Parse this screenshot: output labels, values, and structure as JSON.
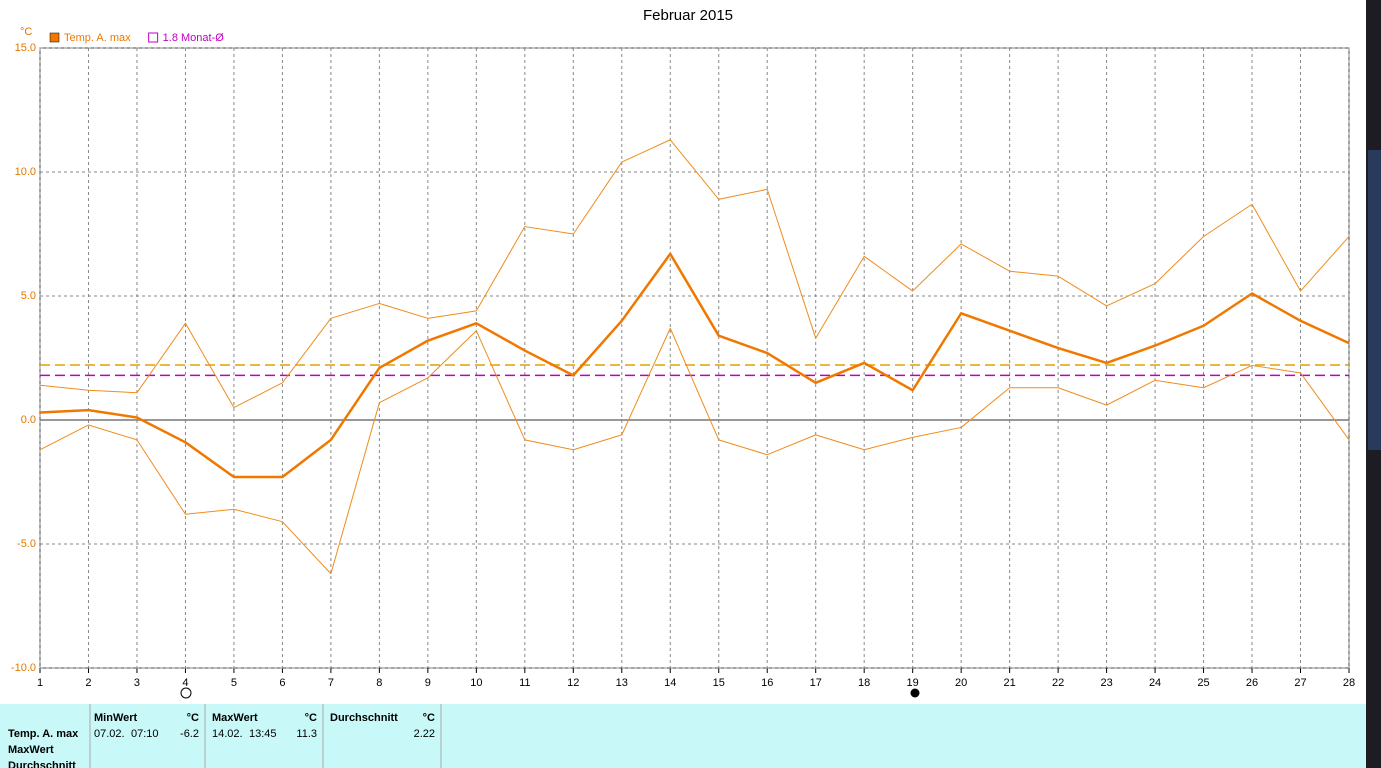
{
  "chart_data": {
    "type": "line",
    "title": "Februar 2015",
    "y_unit": "°C",
    "x": [
      1,
      2,
      3,
      4,
      5,
      6,
      7,
      8,
      9,
      10,
      11,
      12,
      13,
      14,
      15,
      16,
      17,
      18,
      19,
      20,
      21,
      22,
      23,
      24,
      25,
      26,
      27,
      28
    ],
    "xlim": [
      1,
      28
    ],
    "xticks": [
      1,
      2,
      3,
      4,
      5,
      6,
      7,
      8,
      9,
      10,
      11,
      12,
      13,
      14,
      15,
      16,
      17,
      18,
      19,
      20,
      21,
      22,
      23,
      24,
      25,
      26,
      27,
      28
    ],
    "ylim": [
      -10,
      15
    ],
    "yticks": [
      {
        "value": -10,
        "label": "-10.0"
      },
      {
        "value": -5,
        "label": "-5.0"
      },
      {
        "value": 0,
        "label": "0.0"
      },
      {
        "value": 5,
        "label": "5.0"
      },
      {
        "value": 10,
        "label": "10.0"
      },
      {
        "value": 15,
        "label": "15.0"
      }
    ],
    "grid": true,
    "series": [
      {
        "name": "Temp. A. max",
        "color": "#f07800",
        "values": [
          0.3,
          0.4,
          0.1,
          -0.9,
          -2.3,
          -2.3,
          -0.8,
          2.1,
          3.2,
          3.9,
          2.8,
          1.8,
          4.0,
          6.7,
          3.4,
          2.7,
          1.5,
          2.3,
          1.2,
          4.3,
          3.6,
          2.9,
          2.3,
          3.0,
          3.8,
          5.1,
          4.0,
          3.1
        ]
      },
      {
        "color": "#f08c1c",
        "values": [
          1.4,
          1.2,
          1.1,
          3.9,
          0.5,
          1.5,
          4.1,
          4.7,
          4.1,
          4.4,
          7.8,
          7.5,
          10.4,
          11.3,
          8.9,
          9.3,
          3.3,
          6.6,
          5.2,
          7.1,
          6.0,
          5.8,
          4.6,
          5.5,
          7.4,
          8.7,
          5.2,
          7.4
        ]
      },
      {
        "color": "#f08c1c",
        "values": [
          -1.2,
          -0.2,
          -0.8,
          -3.8,
          -3.6,
          -4.1,
          -6.2,
          0.7,
          1.7,
          3.6,
          -0.8,
          -1.2,
          -0.6,
          3.7,
          -0.8,
          -1.4,
          -0.6,
          -1.2,
          -0.7,
          -0.3,
          1.3,
          1.3,
          0.6,
          1.6,
          1.3,
          2.2,
          1.9,
          -0.8
        ]
      }
    ],
    "ref_lines": [
      {
        "value": 2.22,
        "color": "#e0a000"
      },
      {
        "value": 1.8,
        "label": "1.8 Monat-Ø",
        "color": "#c000c0"
      }
    ]
  },
  "table": {
    "row_labels": [
      "Temp. A. max",
      "MaxWert",
      "Durchschnitt"
    ],
    "columns": [
      {
        "header": "MinWert",
        "unit": "°C",
        "date": "07.02.",
        "time": "07:10",
        "value": -6.2
      },
      {
        "header": "MaxWert",
        "unit": "°C",
        "date": "14.02.",
        "time": "13:45",
        "value": 11.3
      },
      {
        "header": "Durchschnitt",
        "unit": "°C",
        "value": 2.22
      }
    ]
  }
}
